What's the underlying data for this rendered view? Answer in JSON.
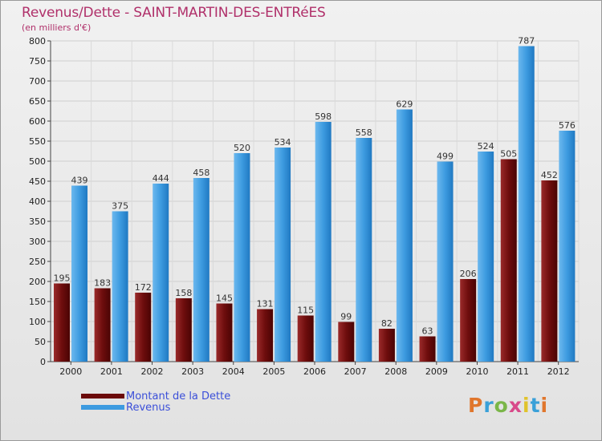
{
  "header": {
    "title": "Revenus/Dette - SAINT-MARTIN-DES-ENTRéES",
    "subtitle": "(en milliers d'€)"
  },
  "legend": {
    "items": [
      {
        "label": "Montant de la Dette",
        "color": "#6b0a0a"
      },
      {
        "label": "Revenus",
        "color": "#3d9be0"
      }
    ]
  },
  "logo": {
    "text": "Proxiti",
    "colors": [
      "#e0762c",
      "#3aa0d8",
      "#7ab648",
      "#d84a8a",
      "#e0c32c",
      "#3aa0d8",
      "#e0762c"
    ]
  },
  "chart_data": {
    "type": "bar",
    "title": "Revenus/Dette - SAINT-MARTIN-DES-ENTRéES",
    "subtitle": "(en milliers d'€)",
    "categories": [
      "2000",
      "2001",
      "2002",
      "2003",
      "2004",
      "2005",
      "2006",
      "2007",
      "2008",
      "2009",
      "2010",
      "2011",
      "2012"
    ],
    "series": [
      {
        "name": "Montant de la Dette",
        "color": "#6b0a0a",
        "values": [
          195,
          183,
          172,
          158,
          145,
          131,
          115,
          99,
          82,
          63,
          206,
          505,
          452
        ]
      },
      {
        "name": "Revenus",
        "color": "#3d9be0",
        "values": [
          439,
          375,
          444,
          458,
          520,
          534,
          598,
          558,
          629,
          499,
          524,
          787,
          576
        ]
      }
    ],
    "ylim": [
      0,
      800
    ],
    "yticks": [
      0,
      50,
      100,
      150,
      200,
      250,
      300,
      350,
      400,
      450,
      500,
      550,
      600,
      650,
      700,
      750,
      800
    ],
    "grid": true,
    "legend_position": "bottom-left"
  }
}
